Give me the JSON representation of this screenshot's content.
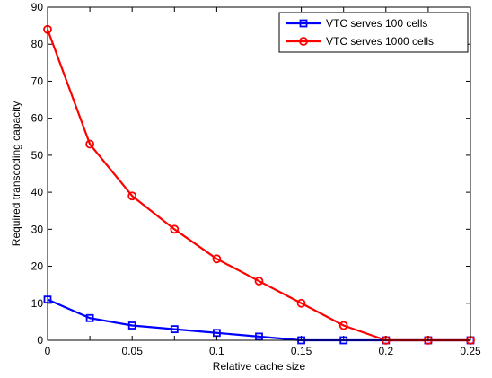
{
  "chart_data": {
    "type": "line",
    "xlabel": "Relative cache size",
    "ylabel": "Required transcoding capacity",
    "xlim": [
      0,
      0.25
    ],
    "ylim": [
      0,
      90
    ],
    "x_ticks": [
      0,
      0.025,
      0.05,
      0.075,
      0.1,
      0.125,
      0.15,
      0.175,
      0.2,
      0.225,
      0.25
    ],
    "x_tick_labels": [
      "0",
      "0.05",
      "0.1",
      "0.15",
      "0.2",
      "0.25"
    ],
    "x_tick_label_values": [
      0,
      0.05,
      0.1,
      0.15,
      0.2,
      0.25
    ],
    "y_tick_labels": [
      "0",
      "10",
      "20",
      "30",
      "40",
      "50",
      "60",
      "70",
      "80",
      "90"
    ],
    "y_tick_label_values": [
      0,
      10,
      20,
      30,
      40,
      50,
      60,
      70,
      80,
      90
    ],
    "grid": false,
    "legend_position": "top-right",
    "x": [
      0,
      0.025,
      0.05,
      0.075,
      0.1,
      0.125,
      0.15,
      0.175,
      0.2,
      0.225,
      0.25
    ],
    "series": [
      {
        "name": "VTC serves 100 cells",
        "color": "#0000ff",
        "marker": "square",
        "values": [
          11,
          6,
          4,
          3,
          2,
          1,
          0,
          0,
          0,
          0,
          0
        ]
      },
      {
        "name": "VTC serves 1000 cells",
        "color": "#ff0000",
        "marker": "circle",
        "values": [
          84,
          53,
          39,
          30,
          22,
          16,
          10,
          4,
          0,
          0,
          0
        ]
      }
    ]
  }
}
